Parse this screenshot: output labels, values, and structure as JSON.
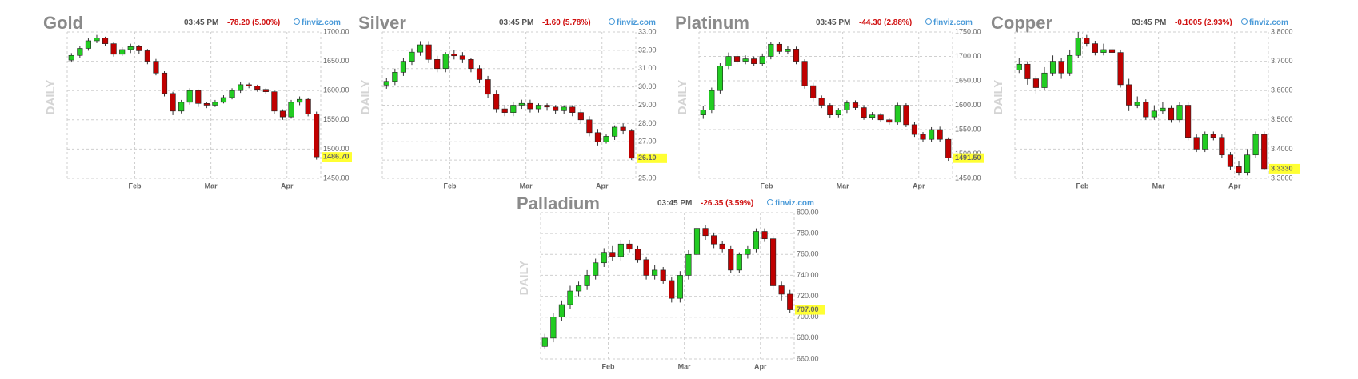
{
  "chart_data": [
    {
      "type": "candlestick",
      "title": "Gold",
      "time": "03:45 PM",
      "change": "-78.20 (5.00%)",
      "source": "finviz.com",
      "period": "DAILY",
      "xlim": [
        0,
        30
      ],
      "xticks": [
        {
          "value": 8,
          "label": "Feb"
        },
        {
          "value": 17,
          "label": "Mar"
        },
        {
          "value": 26,
          "label": "Apr"
        }
      ],
      "ylim": [
        1450,
        1700
      ],
      "yticks": [
        {
          "value": 1450,
          "label": "1450.00"
        },
        {
          "value": 1500,
          "label": "1500.00"
        },
        {
          "value": 1550,
          "label": "1550.00"
        },
        {
          "value": 1600,
          "label": "1600.00"
        },
        {
          "value": 1650,
          "label": "1650.00"
        },
        {
          "value": 1700,
          "label": "1700.00"
        }
      ],
      "open": [
        1652,
        1660,
        1672,
        1685,
        1690,
        1680,
        1662,
        1670,
        1675,
        1668,
        1650,
        1630,
        1595,
        1565,
        1580,
        1600,
        1578,
        1575,
        1580,
        1588,
        1600,
        1610,
        1608,
        1602,
        1598,
        1565,
        1555,
        1580,
        1585,
        1560
      ],
      "high": [
        1664,
        1676,
        1689,
        1695,
        1692,
        1683,
        1674,
        1680,
        1678,
        1671,
        1654,
        1633,
        1598,
        1584,
        1604,
        1602,
        1581,
        1584,
        1592,
        1604,
        1614,
        1613,
        1610,
        1604,
        1600,
        1568,
        1584,
        1590,
        1588,
        1564
      ],
      "low": [
        1648,
        1656,
        1668,
        1681,
        1676,
        1658,
        1659,
        1664,
        1663,
        1645,
        1626,
        1590,
        1558,
        1561,
        1576,
        1572,
        1570,
        1572,
        1578,
        1585,
        1596,
        1604,
        1598,
        1594,
        1560,
        1550,
        1552,
        1575,
        1556,
        1482
      ],
      "close": [
        1660,
        1672,
        1685,
        1690,
        1680,
        1662,
        1670,
        1675,
        1668,
        1650,
        1630,
        1595,
        1565,
        1580,
        1600,
        1578,
        1575,
        1580,
        1588,
        1600,
        1610,
        1608,
        1602,
        1598,
        1565,
        1555,
        1580,
        1585,
        1560,
        1486.7
      ],
      "last_price": {
        "value": 1486.7,
        "label": "1486.70"
      },
      "up_color": "#22cc22",
      "down_color": "#c00000",
      "grid": true
    },
    {
      "type": "candlestick",
      "title": "Silver",
      "time": "03:45 PM",
      "change": "-1.60 (5.78%)",
      "source": "finviz.com",
      "period": "DAILY",
      "xlim": [
        0,
        30
      ],
      "xticks": [
        {
          "value": 8,
          "label": "Feb"
        },
        {
          "value": 17,
          "label": "Mar"
        },
        {
          "value": 26,
          "label": "Apr"
        }
      ],
      "ylim": [
        25,
        33
      ],
      "yticks": [
        {
          "value": 25,
          "label": "25.00"
        },
        {
          "value": 26,
          "label": "26.00"
        },
        {
          "value": 27,
          "label": "27.00"
        },
        {
          "value": 28,
          "label": "28.00"
        },
        {
          "value": 29,
          "label": "29.00"
        },
        {
          "value": 30,
          "label": "30.00"
        },
        {
          "value": 31,
          "label": "31.00"
        },
        {
          "value": 32,
          "label": "32.00"
        },
        {
          "value": 33,
          "label": "33.00"
        }
      ],
      "open": [
        30.1,
        30.3,
        30.8,
        31.4,
        31.9,
        32.3,
        31.5,
        31.0,
        31.8,
        31.7,
        31.5,
        31.0,
        30.4,
        29.6,
        28.8,
        28.6,
        29.0,
        29.1,
        28.8,
        29.0,
        28.9,
        28.7,
        28.9,
        28.6,
        28.2,
        27.5,
        27.0,
        27.3,
        27.8,
        27.6
      ],
      "high": [
        30.5,
        31.0,
        31.6,
        32.1,
        32.5,
        32.5,
        31.7,
        31.9,
        32.0,
        31.9,
        31.6,
        31.2,
        30.6,
        29.8,
        29.0,
        29.2,
        29.3,
        29.3,
        29.1,
        29.1,
        29.0,
        29.0,
        29.0,
        28.8,
        28.4,
        27.7,
        27.4,
        27.9,
        28.0,
        27.7
      ],
      "low": [
        29.9,
        30.1,
        30.6,
        31.2,
        31.7,
        31.3,
        30.8,
        30.8,
        31.5,
        31.3,
        30.8,
        30.2,
        29.4,
        28.6,
        28.4,
        28.4,
        28.8,
        28.6,
        28.6,
        28.7,
        28.5,
        28.5,
        28.4,
        28.0,
        27.3,
        26.8,
        26.9,
        27.1,
        27.4,
        26.0
      ],
      "close": [
        30.3,
        30.8,
        31.4,
        31.9,
        32.3,
        31.5,
        31.0,
        31.8,
        31.7,
        31.5,
        31.0,
        30.4,
        29.6,
        28.8,
        28.6,
        29.0,
        29.1,
        28.8,
        29.0,
        28.9,
        28.7,
        28.9,
        28.6,
        28.2,
        27.5,
        27.0,
        27.3,
        27.8,
        27.6,
        26.1
      ],
      "last_price": {
        "value": 26.1,
        "label": "26.10"
      },
      "up_color": "#22cc22",
      "down_color": "#c00000",
      "grid": true
    },
    {
      "type": "candlestick",
      "title": "Platinum",
      "time": "03:45 PM",
      "change": "-44.30 (2.88%)",
      "source": "finviz.com",
      "period": "DAILY",
      "xlim": [
        0,
        30
      ],
      "xticks": [
        {
          "value": 8,
          "label": "Feb"
        },
        {
          "value": 17,
          "label": "Mar"
        },
        {
          "value": 26,
          "label": "Apr"
        }
      ],
      "ylim": [
        1450,
        1750
      ],
      "yticks": [
        {
          "value": 1450,
          "label": "1450.00"
        },
        {
          "value": 1500,
          "label": "1500.00"
        },
        {
          "value": 1550,
          "label": "1550.00"
        },
        {
          "value": 1600,
          "label": "1600.00"
        },
        {
          "value": 1650,
          "label": "1650.00"
        },
        {
          "value": 1700,
          "label": "1700.00"
        },
        {
          "value": 1750,
          "label": "1750.00"
        }
      ],
      "open": [
        1580,
        1590,
        1630,
        1680,
        1700,
        1690,
        1695,
        1685,
        1700,
        1725,
        1710,
        1715,
        1690,
        1640,
        1615,
        1600,
        1580,
        1590,
        1605,
        1595,
        1575,
        1580,
        1570,
        1565,
        1600,
        1560,
        1540,
        1530,
        1550,
        1530
      ],
      "high": [
        1598,
        1636,
        1686,
        1708,
        1706,
        1702,
        1700,
        1706,
        1730,
        1730,
        1722,
        1720,
        1694,
        1646,
        1620,
        1604,
        1594,
        1610,
        1610,
        1600,
        1586,
        1584,
        1574,
        1605,
        1604,
        1565,
        1545,
        1555,
        1556,
        1534
      ],
      "low": [
        1572,
        1584,
        1624,
        1674,
        1684,
        1684,
        1680,
        1680,
        1694,
        1704,
        1704,
        1684,
        1634,
        1608,
        1594,
        1574,
        1575,
        1584,
        1590,
        1570,
        1570,
        1565,
        1560,
        1560,
        1555,
        1535,
        1525,
        1525,
        1525,
        1486
      ],
      "close": [
        1590,
        1630,
        1680,
        1700,
        1690,
        1695,
        1685,
        1700,
        1725,
        1710,
        1715,
        1690,
        1640,
        1615,
        1600,
        1580,
        1590,
        1605,
        1595,
        1575,
        1580,
        1570,
        1565,
        1600,
        1560,
        1540,
        1530,
        1550,
        1530,
        1491.5
      ],
      "last_price": {
        "value": 1491.5,
        "label": "1491.50"
      },
      "up_color": "#22cc22",
      "down_color": "#c00000",
      "grid": true
    },
    {
      "type": "candlestick",
      "title": "Copper",
      "time": "03:45 PM",
      "change": "-0.1005 (2.93%)",
      "source": "finviz.com",
      "period": "DAILY",
      "xlim": [
        0,
        30
      ],
      "xticks": [
        {
          "value": 8,
          "label": "Feb"
        },
        {
          "value": 17,
          "label": "Mar"
        },
        {
          "value": 26,
          "label": "Apr"
        }
      ],
      "ylim": [
        3.3,
        3.8
      ],
      "yticks": [
        {
          "value": 3.3,
          "label": "3.3000"
        },
        {
          "value": 3.4,
          "label": "3.4000"
        },
        {
          "value": 3.5,
          "label": "3.5000"
        },
        {
          "value": 3.6,
          "label": "3.6000"
        },
        {
          "value": 3.7,
          "label": "3.7000"
        },
        {
          "value": 3.8,
          "label": "3.8000"
        }
      ],
      "open": [
        3.67,
        3.69,
        3.64,
        3.61,
        3.66,
        3.7,
        3.66,
        3.72,
        3.78,
        3.76,
        3.73,
        3.74,
        3.73,
        3.62,
        3.55,
        3.56,
        3.51,
        3.53,
        3.54,
        3.5,
        3.55,
        3.44,
        3.4,
        3.45,
        3.44,
        3.38,
        3.34,
        3.32,
        3.38,
        3.45
      ],
      "high": [
        3.71,
        3.7,
        3.65,
        3.68,
        3.72,
        3.71,
        3.74,
        3.8,
        3.79,
        3.77,
        3.76,
        3.75,
        3.74,
        3.64,
        3.58,
        3.57,
        3.55,
        3.56,
        3.55,
        3.56,
        3.56,
        3.45,
        3.46,
        3.46,
        3.45,
        3.39,
        3.36,
        3.4,
        3.46,
        3.46
      ],
      "low": [
        3.66,
        3.62,
        3.59,
        3.6,
        3.65,
        3.64,
        3.65,
        3.71,
        3.75,
        3.72,
        3.72,
        3.72,
        3.61,
        3.53,
        3.54,
        3.5,
        3.5,
        3.52,
        3.49,
        3.49,
        3.43,
        3.39,
        3.39,
        3.43,
        3.37,
        3.33,
        3.31,
        3.31,
        3.37,
        3.33
      ],
      "close": [
        3.69,
        3.64,
        3.61,
        3.66,
        3.7,
        3.66,
        3.72,
        3.78,
        3.76,
        3.73,
        3.74,
        3.73,
        3.62,
        3.55,
        3.56,
        3.51,
        3.53,
        3.54,
        3.5,
        3.55,
        3.44,
        3.4,
        3.45,
        3.44,
        3.38,
        3.34,
        3.32,
        3.38,
        3.45,
        3.333
      ],
      "last_price": {
        "value": 3.333,
        "label": "3.3330"
      },
      "up_color": "#22cc22",
      "down_color": "#c00000",
      "grid": true
    },
    {
      "type": "candlestick",
      "title": "Palladium",
      "time": "03:45 PM",
      "change": "-26.35 (3.59%)",
      "source": "finviz.com",
      "period": "DAILY",
      "xlim": [
        0,
        30
      ],
      "xticks": [
        {
          "value": 8,
          "label": "Feb"
        },
        {
          "value": 17,
          "label": "Mar"
        },
        {
          "value": 26,
          "label": "Apr"
        }
      ],
      "ylim": [
        660,
        800
      ],
      "yticks": [
        {
          "value": 660,
          "label": "660.00"
        },
        {
          "value": 680,
          "label": "680.00"
        },
        {
          "value": 700,
          "label": "700.00"
        },
        {
          "value": 720,
          "label": "720.00"
        },
        {
          "value": 740,
          "label": "740.00"
        },
        {
          "value": 760,
          "label": "760.00"
        },
        {
          "value": 780,
          "label": "780.00"
        },
        {
          "value": 800,
          "label": "800.00"
        }
      ],
      "open": [
        672,
        680,
        700,
        712,
        725,
        730,
        740,
        752,
        762,
        758,
        770,
        765,
        755,
        740,
        745,
        735,
        718,
        740,
        760,
        785,
        778,
        770,
        765,
        745,
        760,
        765,
        782,
        775,
        730,
        722
      ],
      "high": [
        684,
        704,
        716,
        730,
        734,
        745,
        756,
        766,
        768,
        774,
        774,
        768,
        758,
        750,
        748,
        738,
        744,
        764,
        788,
        788,
        781,
        773,
        768,
        762,
        768,
        785,
        785,
        778,
        734,
        726
      ],
      "low": [
        670,
        676,
        696,
        708,
        720,
        726,
        736,
        748,
        754,
        754,
        762,
        752,
        736,
        736,
        732,
        714,
        714,
        736,
        756,
        774,
        766,
        762,
        742,
        742,
        756,
        762,
        772,
        726,
        716,
        704
      ],
      "close": [
        680,
        700,
        712,
        725,
        730,
        740,
        752,
        762,
        758,
        770,
        765,
        755,
        740,
        745,
        735,
        718,
        740,
        760,
        785,
        778,
        770,
        765,
        745,
        760,
        765,
        782,
        775,
        730,
        722,
        707
      ],
      "last_price": {
        "value": 707,
        "label": "707.00"
      },
      "up_color": "#22cc22",
      "down_color": "#c00000",
      "grid": true
    }
  ]
}
